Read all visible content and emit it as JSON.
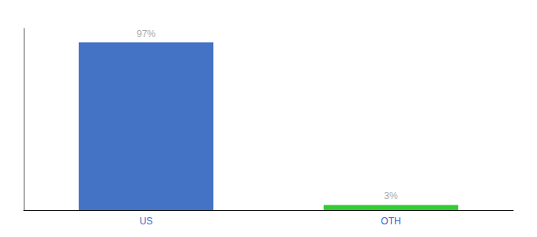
{
  "chart_data": {
    "type": "bar",
    "categories": [
      "US",
      "OTH"
    ],
    "values": [
      97,
      3
    ],
    "value_labels": [
      "97%",
      "3%"
    ],
    "colors": [
      "#4472c4",
      "#33cc33"
    ],
    "ylim": [
      0,
      105
    ],
    "grid": false,
    "data_labels": true,
    "tick_labels": "x"
  }
}
